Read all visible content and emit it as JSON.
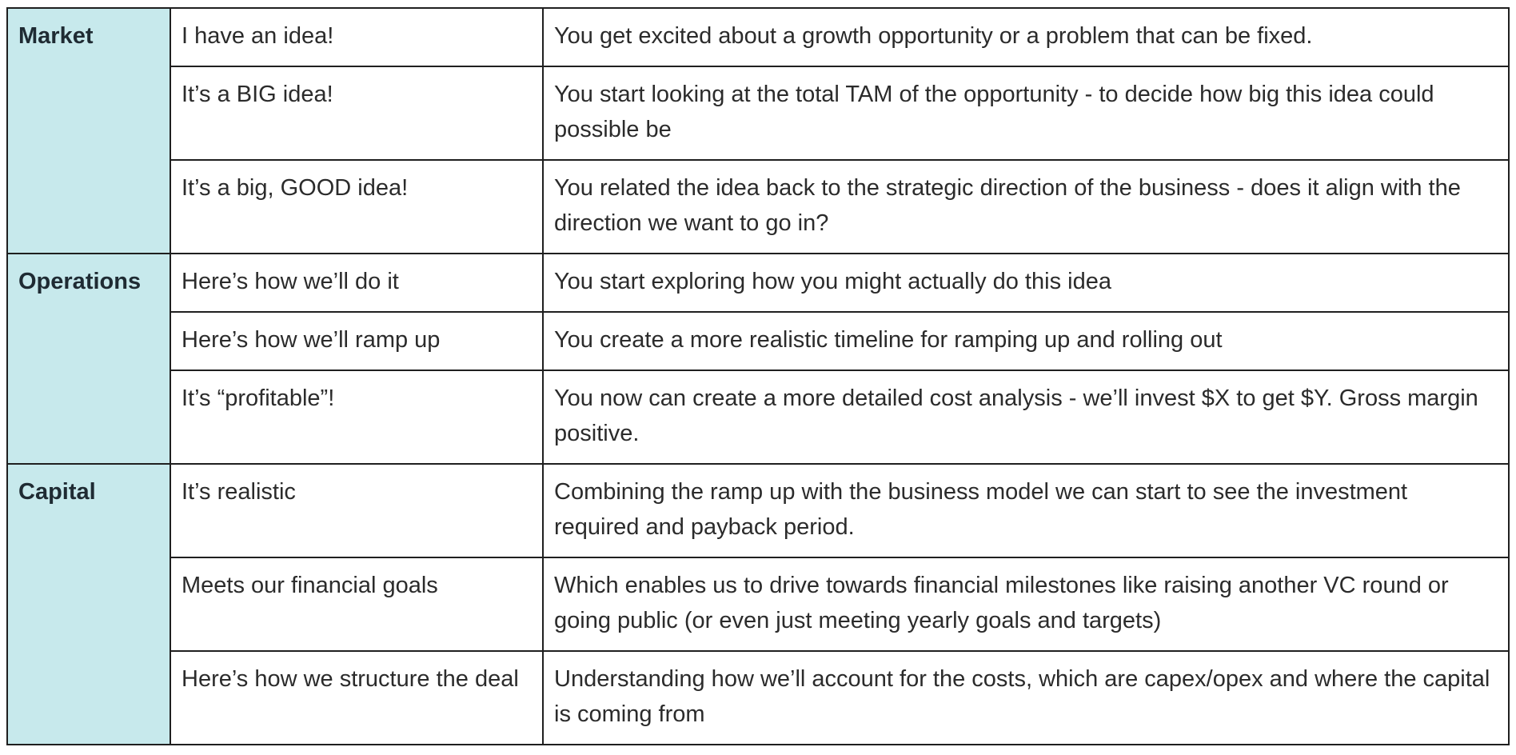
{
  "table": {
    "groups": [
      {
        "phase": "Market",
        "rows": [
          {
            "stage": "I have an idea!",
            "description": "You get excited about a growth opportunity or a problem that can be fixed."
          },
          {
            "stage": "It’s a BIG idea!",
            "description": "You start looking at the total TAM of the opportunity - to decide how big this idea could possible be"
          },
          {
            "stage": "It’s a big, GOOD idea!",
            "description": "You related the idea back to the strategic direction of the business - does it align with the direction we want to go in?"
          }
        ]
      },
      {
        "phase": "Operations",
        "rows": [
          {
            "stage": "Here’s how we’ll do it",
            "description": "You start exploring how you might actually do this idea"
          },
          {
            "stage": "Here’s how we’ll ramp up",
            "description": "You create a more realistic timeline for ramping up and rolling out"
          },
          {
            "stage": "It’s “profitable”!",
            "description": "You now can create a more detailed cost analysis - we’ll invest $X to get $Y. Gross margin positive."
          }
        ]
      },
      {
        "phase": "Capital",
        "rows": [
          {
            "stage": "It’s realistic",
            "description": "Combining the ramp up with the business model we can start to see the investment required and payback period."
          },
          {
            "stage": "Meets our financial goals",
            "description": "Which enables us to drive towards financial milestones like raising another VC round or going public (or even just meeting yearly goals and targets)"
          },
          {
            "stage": "Here’s how we structure the deal",
            "description": "Understanding how we’ll account for the costs, which are capex/opex and where the capital is coming from"
          }
        ]
      }
    ],
    "colors": {
      "phase_background": "#c7e9ec",
      "border": "#1f1f1f",
      "text": "#2b2b2b"
    }
  }
}
